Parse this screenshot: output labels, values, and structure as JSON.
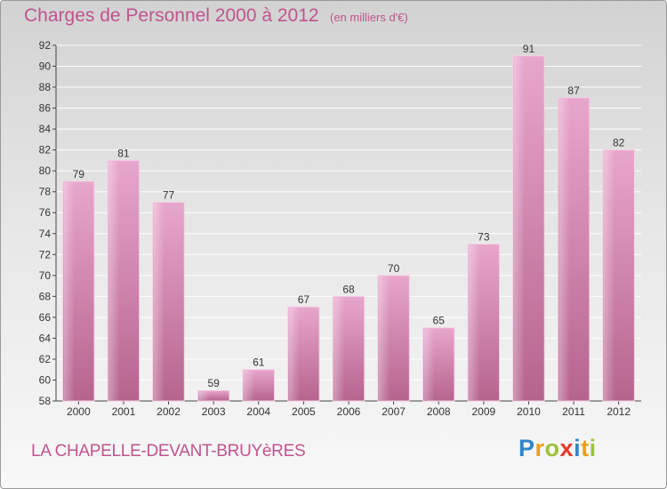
{
  "header": {
    "title": "Charges de Personnel 2000 à 2012",
    "subtitle": "(en milliers d'€)"
  },
  "footer": {
    "commune": "LA CHAPELLE-DEVANT-BRUYèRES",
    "logo": {
      "letters": [
        "P",
        "r",
        "o",
        "x",
        "i",
        "t",
        "i"
      ],
      "colors": [
        "#2f86c9",
        "#e8a21a",
        "#9cc23b",
        "#e33a2c",
        "#2f86c9",
        "#e8a21a",
        "#9cc23b"
      ]
    }
  },
  "colors": {
    "bar_light": "#e8a6cc",
    "bar_dark": "#b6648e",
    "title": "#c0548e",
    "grid": "#ffffff"
  },
  "chart_data": {
    "type": "bar",
    "categories": [
      "2000",
      "2001",
      "2002",
      "2003",
      "2004",
      "2005",
      "2006",
      "2007",
      "2008",
      "2009",
      "2010",
      "2011",
      "2012"
    ],
    "values": [
      79,
      81,
      77,
      59,
      61,
      67,
      68,
      70,
      65,
      73,
      91,
      87,
      82
    ],
    "ylim": [
      58,
      92
    ],
    "yticks": [
      58,
      60,
      62,
      64,
      66,
      68,
      70,
      72,
      74,
      76,
      78,
      80,
      82,
      84,
      86,
      88,
      90,
      92
    ],
    "grid": true,
    "xlabel": "",
    "ylabel": ""
  }
}
